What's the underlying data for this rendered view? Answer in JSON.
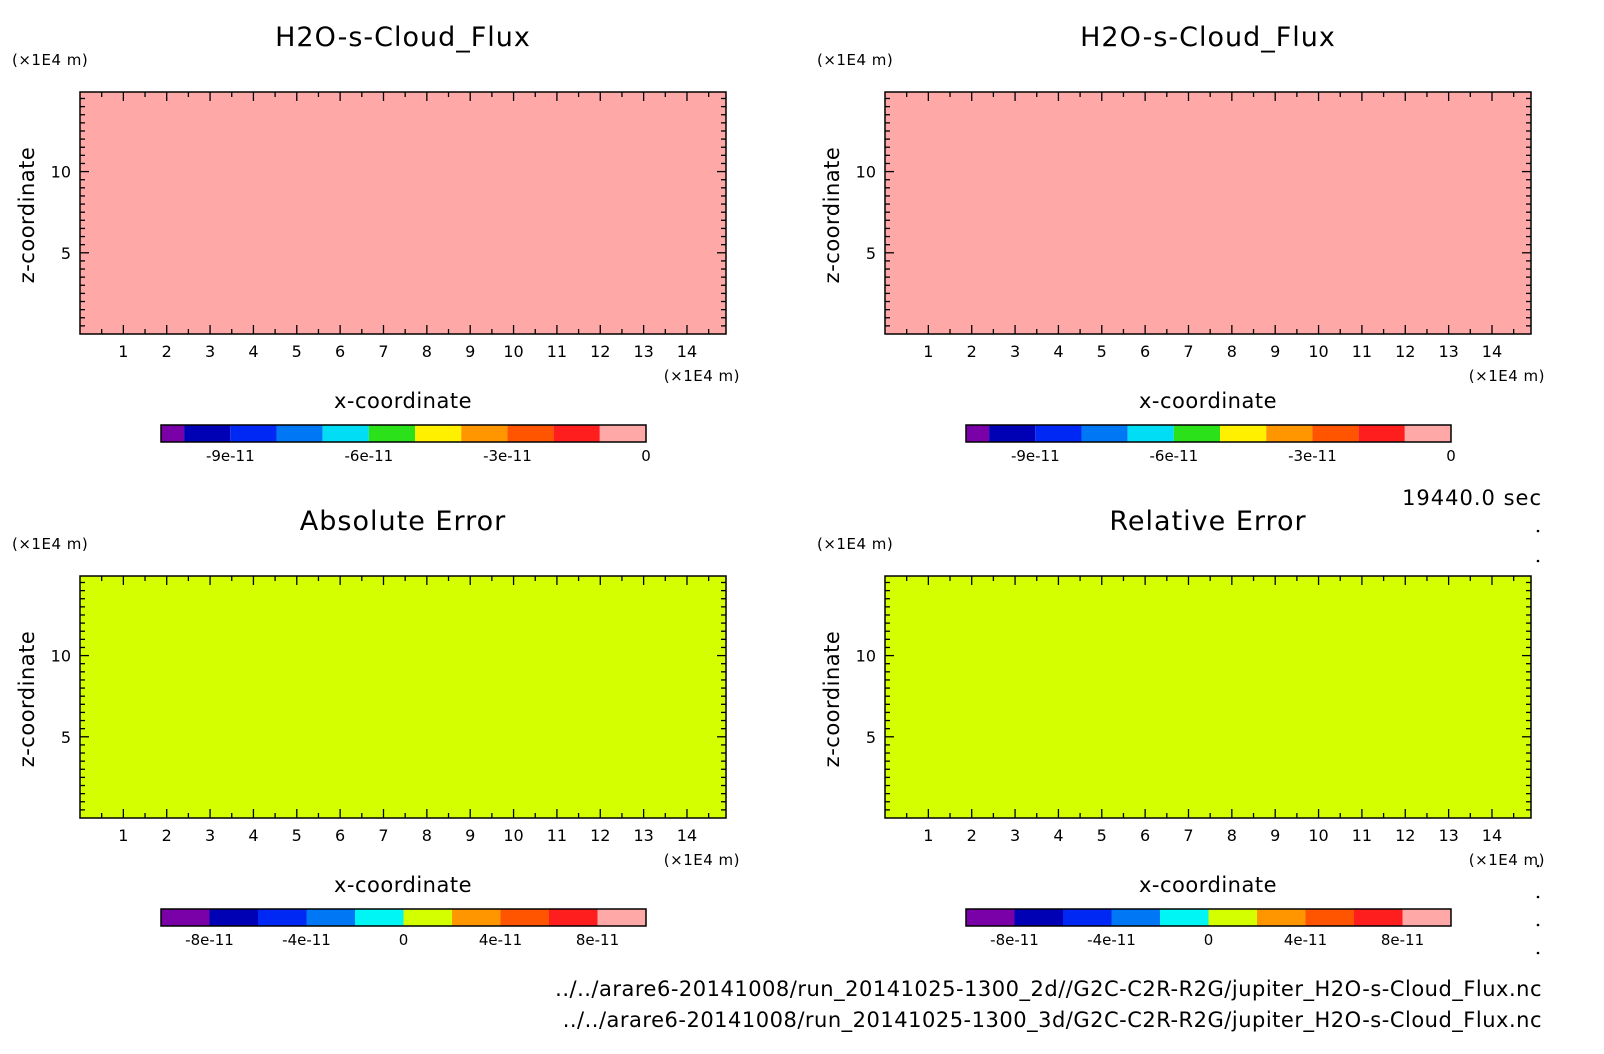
{
  "figure": {
    "time_label": "19440.0 sec",
    "file_paths": [
      "../../arare6-20141008/run_20141025-1300_2d//G2C-C2R-R2G/jupiter_H2O-s-Cloud_Flux.nc",
      "../../arare6-20141008/run_20141025-1300_3d/G2C-C2R-R2G/jupiter_H2O-s-Cloud_Flux.nc"
    ]
  },
  "chart_data": [
    {
      "type": "heatmap",
      "title": "H2O-s-Cloud_Flux",
      "xlabel": "x-coordinate",
      "ylabel": "z-coordinate",
      "x_unit": "(×1E4 m)",
      "y_unit": "(×1E4 m)",
      "x_ticks": [
        "1",
        "2",
        "3",
        "4",
        "5",
        "6",
        "7",
        "8",
        "9",
        "10",
        "11",
        "12",
        "13",
        "14"
      ],
      "y_ticks": [
        "5",
        "10"
      ],
      "xlim": [
        0,
        14.9
      ],
      "ylim": [
        0,
        14.9
      ],
      "field_color": "#ffa8a8",
      "colorbar": {
        "colors": [
          "#7a00a8",
          "#0000b4",
          "#0028f5",
          "#0078f5",
          "#00ddf5",
          "#2ae11a",
          "#fff000",
          "#ff9600",
          "#ff5500",
          "#ff1e1e",
          "#ffa8a8"
        ],
        "boundaries": [
          -1.05e-10,
          -1e-10,
          -9e-11,
          -8e-11,
          -7e-11,
          -6e-11,
          -5e-11,
          -4e-11,
          -3e-11,
          -2e-11,
          -1e-11,
          0
        ],
        "tick_labels": [
          "-9e-11",
          "-6e-11",
          "-3e-11",
          "0"
        ],
        "tick_values": [
          -9e-11,
          -6e-11,
          -3e-11,
          0
        ]
      }
    },
    {
      "type": "heatmap",
      "title": "H2O-s-Cloud_Flux",
      "xlabel": "x-coordinate",
      "ylabel": "z-coordinate",
      "x_unit": "(×1E4 m)",
      "y_unit": "(×1E4 m)",
      "x_ticks": [
        "1",
        "2",
        "3",
        "4",
        "5",
        "6",
        "7",
        "8",
        "9",
        "10",
        "11",
        "12",
        "13",
        "14"
      ],
      "y_ticks": [
        "5",
        "10"
      ],
      "xlim": [
        0,
        14.9
      ],
      "ylim": [
        0,
        14.9
      ],
      "field_color": "#ffa8a8",
      "colorbar": {
        "colors": [
          "#7a00a8",
          "#0000b4",
          "#0028f5",
          "#0078f5",
          "#00ddf5",
          "#2ae11a",
          "#fff000",
          "#ff9600",
          "#ff5500",
          "#ff1e1e",
          "#ffa8a8"
        ],
        "boundaries": [
          -1.05e-10,
          -1e-10,
          -9e-11,
          -8e-11,
          -7e-11,
          -6e-11,
          -5e-11,
          -4e-11,
          -3e-11,
          -2e-11,
          -1e-11,
          0
        ],
        "tick_labels": [
          "-9e-11",
          "-6e-11",
          "-3e-11",
          "0"
        ],
        "tick_values": [
          -9e-11,
          -6e-11,
          -3e-11,
          0
        ]
      }
    },
    {
      "type": "heatmap",
      "title": "Absolute Error",
      "xlabel": "x-coordinate",
      "ylabel": "z-coordinate",
      "x_unit": "(×1E4 m)",
      "y_unit": "(×1E4 m)",
      "x_ticks": [
        "1",
        "2",
        "3",
        "4",
        "5",
        "6",
        "7",
        "8",
        "9",
        "10",
        "11",
        "12",
        "13",
        "14"
      ],
      "y_ticks": [
        "5",
        "10"
      ],
      "xlim": [
        0,
        14.9
      ],
      "ylim": [
        0,
        14.9
      ],
      "field_color": "#d4ff00",
      "colorbar": {
        "colors": [
          "#7a00a8",
          "#0000b4",
          "#0028f5",
          "#0078f5",
          "#00f5f5",
          "#d4ff00",
          "#ff9600",
          "#ff5500",
          "#ff1e1e",
          "#ffa8a8"
        ],
        "boundaries": [
          -1e-10,
          -8e-11,
          -6e-11,
          -4e-11,
          -2e-11,
          0,
          2e-11,
          4e-11,
          6e-11,
          8e-11,
          1e-10
        ],
        "tick_labels": [
          "-8e-11",
          "-4e-11",
          "0",
          "4e-11",
          "8e-11"
        ],
        "tick_values": [
          -8e-11,
          -4e-11,
          0,
          4e-11,
          8e-11
        ]
      }
    },
    {
      "type": "heatmap",
      "title": "Relative Error",
      "xlabel": "x-coordinate",
      "ylabel": "z-coordinate",
      "x_unit": "(×1E4 m)",
      "y_unit": "(×1E4 m)",
      "x_ticks": [
        "1",
        "2",
        "3",
        "4",
        "5",
        "6",
        "7",
        "8",
        "9",
        "10",
        "11",
        "12",
        "13",
        "14"
      ],
      "y_ticks": [
        "5",
        "10"
      ],
      "xlim": [
        0,
        14.9
      ],
      "ylim": [
        0,
        14.9
      ],
      "field_color": "#d4ff00",
      "colorbar": {
        "colors": [
          "#7a00a8",
          "#0000b4",
          "#0028f5",
          "#0078f5",
          "#00f5f5",
          "#d4ff00",
          "#ff9600",
          "#ff5500",
          "#ff1e1e",
          "#ffa8a8"
        ],
        "boundaries": [
          -1e-10,
          -8e-11,
          -6e-11,
          -4e-11,
          -2e-11,
          0,
          2e-11,
          4e-11,
          6e-11,
          8e-11,
          1e-10
        ],
        "tick_labels": [
          "-8e-11",
          "-4e-11",
          "0",
          "4e-11",
          "8e-11"
        ],
        "tick_values": [
          -8e-11,
          -4e-11,
          0,
          4e-11,
          8e-11
        ]
      }
    }
  ]
}
